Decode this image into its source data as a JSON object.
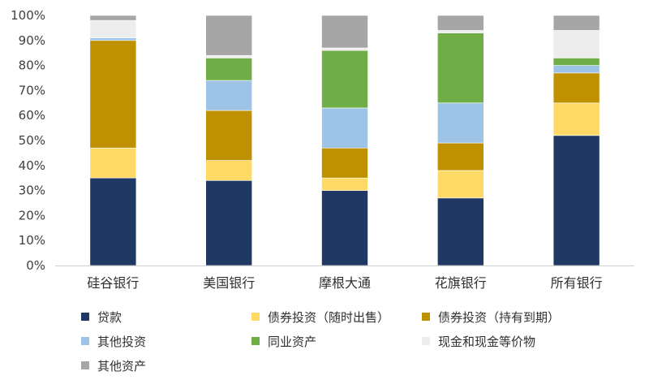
{
  "chart_data": {
    "type": "bar",
    "stacked": true,
    "percent": true,
    "title": "",
    "xlabel": "",
    "ylabel": "",
    "ylim": [
      0,
      100
    ],
    "ytick_labels": [
      "0%",
      "10%",
      "20%",
      "30%",
      "40%",
      "50%",
      "60%",
      "70%",
      "80%",
      "90%",
      "100%"
    ],
    "grid": false,
    "legend_position": "bottom",
    "categories": [
      "硅谷银行",
      "美国银行",
      "摩根大通",
      "花旗银行",
      "所有银行"
    ],
    "series": [
      {
        "name": "贷款",
        "color": "#1f3864",
        "values": [
          35,
          34,
          30,
          27,
          52
        ]
      },
      {
        "name": "债券投资（随时出售）",
        "color": "#ffd966",
        "values": [
          12,
          8,
          5,
          11,
          13
        ]
      },
      {
        "name": "债券投资（持有到期）",
        "color": "#bf9000",
        "values": [
          43,
          20,
          12,
          11,
          12
        ]
      },
      {
        "name": "其他投资",
        "color": "#9dc3e6",
        "values": [
          1,
          12,
          16,
          16,
          3
        ]
      },
      {
        "name": "同业资产",
        "color": "#70ad47",
        "values": [
          0,
          9,
          23,
          28,
          3
        ]
      },
      {
        "name": "现金和现金等价物",
        "color": "#ededed",
        "values": [
          7,
          1,
          1,
          1,
          11
        ]
      },
      {
        "name": "其他资产",
        "color": "#a6a6a6",
        "values": [
          2,
          16,
          13,
          6,
          6
        ]
      }
    ]
  }
}
